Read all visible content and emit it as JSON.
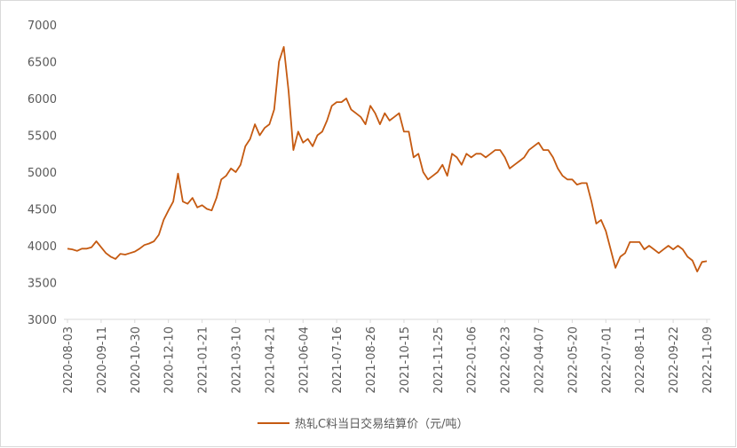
{
  "chart_data": {
    "type": "line",
    "categories": [
      "2020-08-03",
      null,
      null,
      null,
      null,
      null,
      null,
      "2020-09-11",
      null,
      null,
      null,
      null,
      null,
      null,
      "2020-10-30",
      null,
      null,
      null,
      null,
      null,
      null,
      "2020-12-10",
      null,
      null,
      null,
      null,
      null,
      null,
      "2021-01-21",
      null,
      null,
      null,
      null,
      null,
      null,
      "2021-03-10",
      null,
      null,
      null,
      null,
      null,
      null,
      "2021-04-21",
      null,
      null,
      null,
      null,
      null,
      null,
      "2021-06-04",
      null,
      null,
      null,
      null,
      null,
      null,
      "2021-07-16",
      null,
      null,
      null,
      null,
      null,
      null,
      "2021-08-26",
      null,
      null,
      null,
      null,
      null,
      null,
      "2021-10-15",
      null,
      null,
      null,
      null,
      null,
      null,
      "2021-11-25",
      null,
      null,
      null,
      null,
      null,
      null,
      "2022-01-06",
      null,
      null,
      null,
      null,
      null,
      null,
      "2022-02-23",
      null,
      null,
      null,
      null,
      null,
      null,
      "2022-04-07",
      null,
      null,
      null,
      null,
      null,
      null,
      "2022-05-20",
      null,
      null,
      null,
      null,
      null,
      null,
      "2022-07-01",
      null,
      null,
      null,
      null,
      null,
      null,
      "2022-08-11",
      null,
      null,
      null,
      null,
      null,
      null,
      "2022-09-22",
      null,
      null,
      null,
      null,
      null,
      null,
      "2022-11-09"
    ],
    "series": [
      {
        "name": "热轧C料当日交易结算价（元/吨）",
        "color": "#c55a11",
        "values": [
          3960,
          3950,
          3930,
          3960,
          3960,
          3980,
          4060,
          3980,
          3900,
          3850,
          3820,
          3890,
          3880,
          3900,
          3920,
          3960,
          4010,
          4030,
          4060,
          4150,
          4350,
          4480,
          4600,
          4980,
          4600,
          4570,
          4650,
          4520,
          4550,
          4500,
          4480,
          4650,
          4900,
          4950,
          5050,
          5000,
          5100,
          5350,
          5450,
          5650,
          5500,
          5600,
          5650,
          5850,
          6500,
          6700,
          6100,
          5300,
          5550,
          5400,
          5450,
          5350,
          5500,
          5550,
          5700,
          5900,
          5950,
          5950,
          6000,
          5850,
          5800,
          5750,
          5650,
          5900,
          5800,
          5650,
          5800,
          5700,
          5750,
          5800,
          5550,
          5550,
          5200,
          5250,
          5000,
          4900,
          4950,
          5000,
          5100,
          4950,
          5250,
          5200,
          5100,
          5250,
          5200,
          5250,
          5250,
          5200,
          5250,
          5300,
          5300,
          5200,
          5050,
          5100,
          5150,
          5200,
          5300,
          5350,
          5400,
          5300,
          5300,
          5200,
          5050,
          4950,
          4900,
          4900,
          4830,
          4850,
          4850,
          4600,
          4300,
          4350,
          4200,
          3950,
          3700,
          3850,
          3900,
          4050,
          4050,
          4050,
          3950,
          4000,
          3950,
          3900,
          3950,
          4000,
          3950,
          4000,
          3950,
          3850,
          3800,
          3650,
          3780,
          3790
        ]
      }
    ],
    "ylim": [
      3000,
      7000
    ],
    "yticks": [
      3000,
      3500,
      4000,
      4500,
      5000,
      5500,
      6000,
      6500,
      7000
    ],
    "legend": "bottom"
  }
}
